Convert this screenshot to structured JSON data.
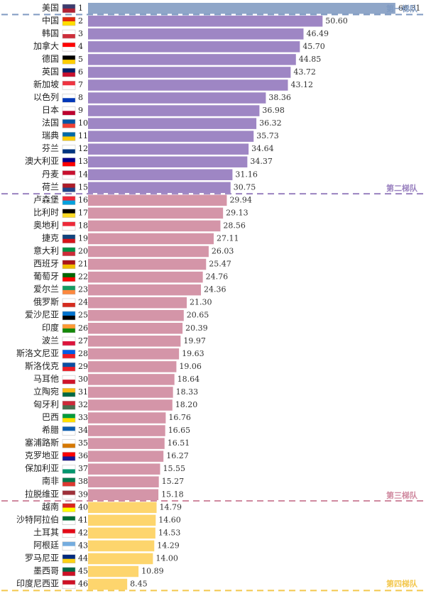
{
  "chart_data": {
    "type": "bar",
    "orientation": "horizontal",
    "xlim": [
      0,
      72
    ],
    "legend": "none",
    "grid": false,
    "categories": [
      "美国",
      "中国",
      "韩国",
      "加拿大",
      "德国",
      "英国",
      "新加坡",
      "以色列",
      "日本",
      "法国",
      "瑞典",
      "芬兰",
      "澳大利亚",
      "丹麦",
      "荷兰",
      "卢森堡",
      "比利时",
      "奥地利",
      "捷克",
      "意大利",
      "西班牙",
      "葡萄牙",
      "爱尔兰",
      "俄罗斯",
      "爱沙尼亚",
      "印度",
      "波兰",
      "斯洛文尼亚",
      "斯洛伐克",
      "马耳他",
      "立陶宛",
      "匈牙利",
      "巴西",
      "希腊",
      "塞浦路斯",
      "克罗地亚",
      "保加利亚",
      "南非",
      "拉脱维亚",
      "越南",
      "沙特阿拉伯",
      "土耳其",
      "阿根廷",
      "罗马尼亚",
      "墨西哥",
      "印度尼西亚"
    ],
    "ranks": [
      "1",
      "2",
      "3",
      "4",
      "5",
      "6",
      "7",
      "8",
      "9",
      "10",
      "11",
      "12",
      "13",
      "14",
      "15",
      "16",
      "17",
      "18",
      "19",
      "20",
      "21",
      "22",
      "23",
      "24",
      "25",
      "26",
      "27",
      "28",
      "29",
      "30",
      "31",
      "32",
      "33",
      "34",
      "35",
      "36",
      "37",
      "38",
      "39",
      "40",
      "41",
      "42",
      "43",
      "44",
      "45",
      "46"
    ],
    "values": [
      66.31,
      50.6,
      46.49,
      45.7,
      44.85,
      43.72,
      43.12,
      38.36,
      36.98,
      36.32,
      35.73,
      34.64,
      34.37,
      31.16,
      30.75,
      29.94,
      29.13,
      28.56,
      27.11,
      26.03,
      25.47,
      24.76,
      24.36,
      21.3,
      20.65,
      20.39,
      19.97,
      19.63,
      19.06,
      18.64,
      18.33,
      18.2,
      16.76,
      16.65,
      16.51,
      16.27,
      15.55,
      15.27,
      15.18,
      14.79,
      14.6,
      14.53,
      14.29,
      14.0,
      10.89,
      8.45
    ],
    "value_labels": [
      "66.31",
      "50.60",
      "46.49",
      "45.70",
      "44.85",
      "43.72",
      "43.12",
      "38.36",
      "36.98",
      "36.32",
      "35.73",
      "34.64",
      "34.37",
      "31.16",
      "30.75",
      "29.94",
      "29.13",
      "28.56",
      "27.11",
      "26.03",
      "25.47",
      "24.76",
      "24.36",
      "21.30",
      "20.65",
      "20.39",
      "19.97",
      "19.63",
      "19.06",
      "18.64",
      "18.33",
      "18.20",
      "16.76",
      "16.65",
      "16.51",
      "16.27",
      "15.55",
      "15.27",
      "15.18",
      "14.79",
      "14.60",
      "14.53",
      "14.29",
      "14.00",
      "10.89",
      "8.45"
    ],
    "tiers": [
      {
        "label": "第一梯队",
        "start": 0,
        "end": 0,
        "bar_color": "#8fa6c8",
        "label_color": "#7f9ac2"
      },
      {
        "label": "第二梯队",
        "start": 1,
        "end": 14,
        "bar_color": "#9e86c4",
        "label_color": "#9a82c0"
      },
      {
        "label": "第三梯队",
        "start": 15,
        "end": 38,
        "bar_color": "#d495a8",
        "label_color": "#d08aa0"
      },
      {
        "label": "第四梯队",
        "start": 39,
        "end": 45,
        "bar_color": "#fdd56d",
        "label_color": "#f3c74d"
      }
    ]
  }
}
